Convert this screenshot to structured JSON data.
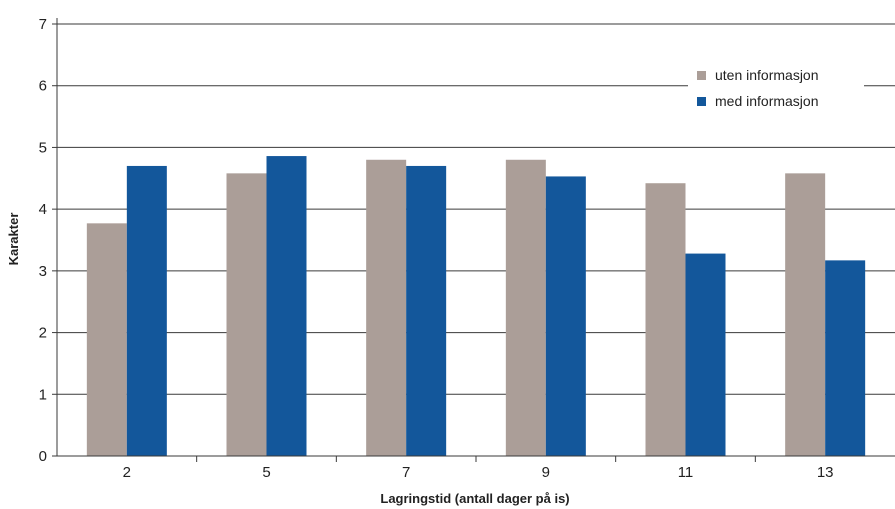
{
  "chart_data": {
    "type": "bar",
    "title": "",
    "xlabel": "Lagringstid (antall dager på is)",
    "ylabel": "Karakter",
    "categories": [
      "2",
      "5",
      "7",
      "9",
      "11",
      "13"
    ],
    "series": [
      {
        "name": "uten informasjon",
        "values": [
          3.77,
          4.58,
          4.8,
          4.8,
          4.42,
          4.58
        ],
        "color": "#ab9e98"
      },
      {
        "name": "med informasjon",
        "values": [
          4.7,
          4.86,
          4.7,
          4.53,
          3.28,
          3.17
        ],
        "color": "#13579b"
      }
    ],
    "ylim": [
      0,
      7
    ],
    "yticks": [
      0,
      1,
      2,
      3,
      4,
      5,
      6,
      7
    ],
    "grid": true,
    "legend_position": "top-right"
  }
}
